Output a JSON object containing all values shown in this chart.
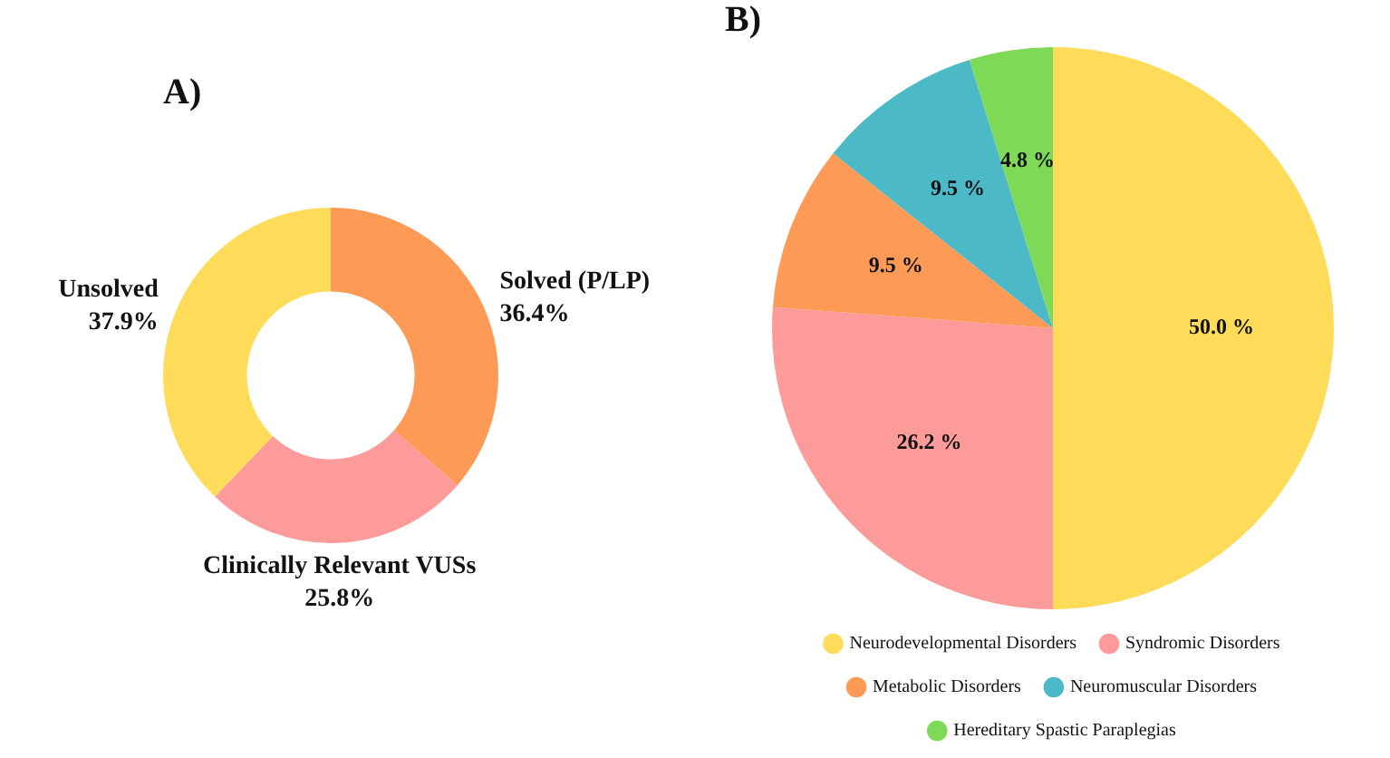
{
  "chart_data": [
    {
      "type": "donut",
      "title": "A)",
      "categories": [
        "Solved (P/LP)",
        "Clinically Relevant VUSs",
        "Unsolved"
      ],
      "values": [
        36.4,
        25.8,
        37.9
      ],
      "value_labels": [
        "36.4%",
        "25.8%",
        "37.9%"
      ],
      "colors": [
        "#fd9a56",
        "#fd9b9b",
        "#fedc5a"
      ],
      "legend": false
    },
    {
      "type": "pie",
      "title": "B)",
      "categories": [
        "Neurodevelopmental Disorders",
        "Syndromic Disorders",
        "Metabolic Disorders",
        "Neuromuscular Disorders",
        "Hereditary Spastic Paraplegias"
      ],
      "values": [
        50.0,
        26.2,
        9.5,
        9.5,
        4.8
      ],
      "value_labels": [
        "50.0 %",
        "26.2 %",
        "9.5 %",
        "9.5 %",
        "4.8 %"
      ],
      "colors": [
        "#fedc5a",
        "#fd9b9b",
        "#fd9a56",
        "#4cb9c6",
        "#7ed957"
      ],
      "legend": "bottom"
    }
  ]
}
